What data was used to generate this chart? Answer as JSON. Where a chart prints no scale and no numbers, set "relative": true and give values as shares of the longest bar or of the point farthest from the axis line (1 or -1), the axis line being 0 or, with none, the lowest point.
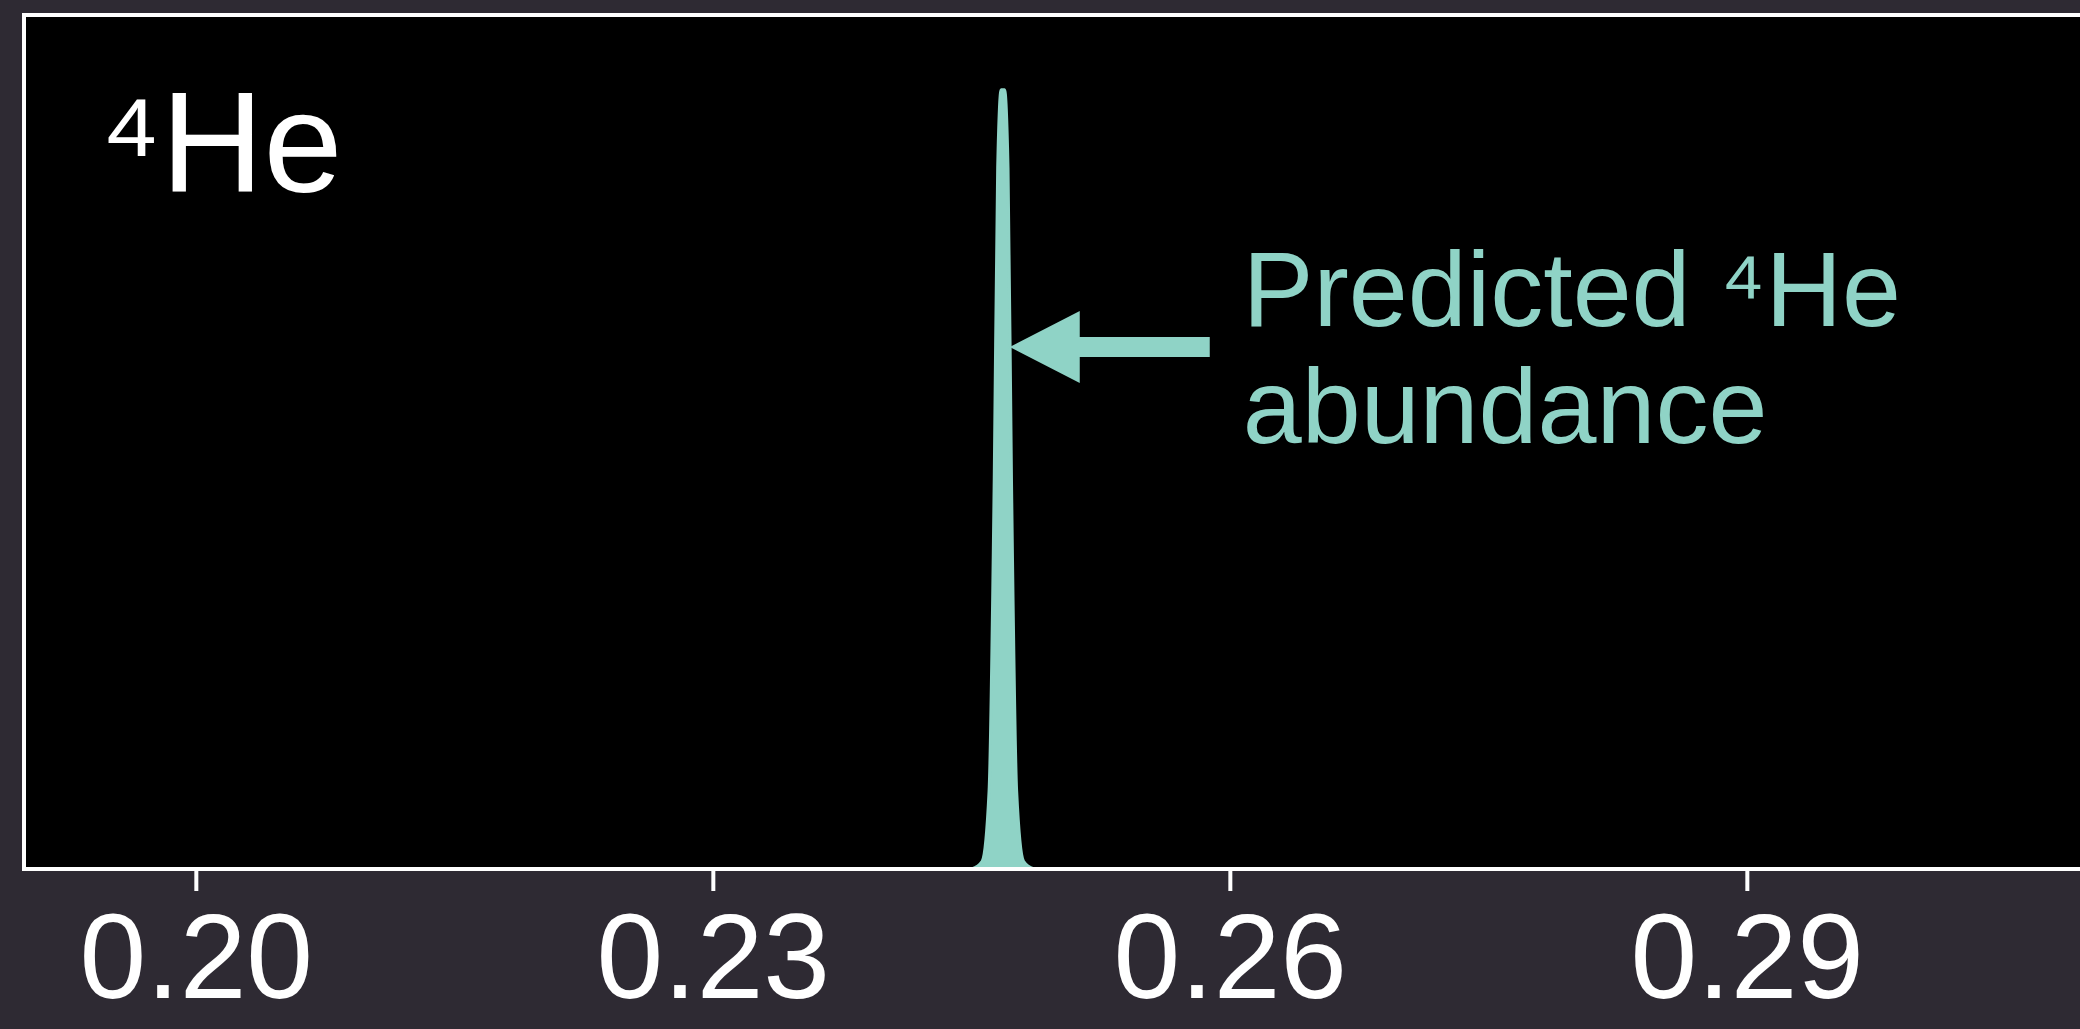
{
  "chart_data": {
    "type": "area",
    "relative": true,
    "x": [
      0.245,
      0.2456,
      0.246,
      0.2463,
      0.2465,
      0.2467,
      0.2469,
      0.2471,
      0.2473,
      0.2476,
      0.248,
      0.2486
    ],
    "series": [
      {
        "color": "#8fd3c6",
        "values": [
          0,
          0.01,
          0.1,
          0.5,
          0.9,
          1,
          1,
          0.9,
          0.5,
          0.1,
          0.01,
          0
        ]
      }
    ],
    "xlim": [
      0.19,
      0.31
    ],
    "xticks": [
      {
        "value": 0.2,
        "label": "0.20"
      },
      {
        "value": 0.23,
        "label": "0.23"
      },
      {
        "value": 0.26,
        "label": "0.26"
      },
      {
        "value": 0.29,
        "label": "0.29"
      }
    ],
    "annotations": [
      "⁴He",
      {
        "text": "Predicted ⁴He abundance",
        "x": 0.2472,
        "y": 0.67
      }
    ]
  }
}
